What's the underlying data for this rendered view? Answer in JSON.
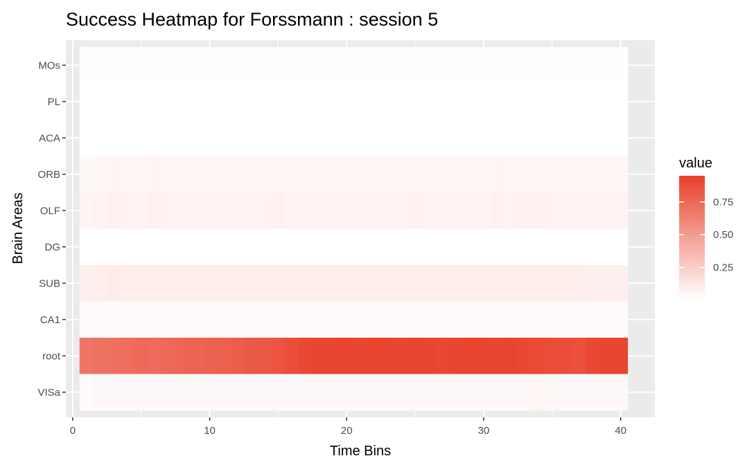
{
  "chart_data": {
    "type": "heatmap",
    "title": "Success Heatmap for Forssmann : session 5",
    "xlabel": "Time Bins",
    "ylabel": "Brain Areas",
    "xlim": [
      -0.5,
      42.5
    ],
    "x_ticks": [
      0,
      10,
      20,
      30,
      40
    ],
    "x": [
      1,
      2,
      3,
      4,
      5,
      6,
      7,
      8,
      9,
      10,
      11,
      12,
      13,
      14,
      15,
      16,
      17,
      18,
      19,
      20,
      21,
      22,
      23,
      24,
      25,
      26,
      27,
      28,
      29,
      30,
      31,
      32,
      33,
      34,
      35,
      36,
      37,
      38,
      39,
      40
    ],
    "categories": [
      "MOs",
      "PL",
      "ACA",
      "ORB",
      "OLF",
      "DG",
      "SUB",
      "CA1",
      "root",
      "VISa"
    ],
    "series": [
      {
        "name": "MOs",
        "values": [
          0.01,
          0.01,
          0.01,
          0.01,
          0.01,
          0.01,
          0.01,
          0.01,
          0.01,
          0.01,
          0.01,
          0.01,
          0.01,
          0.01,
          0.01,
          0.01,
          0.01,
          0.01,
          0.01,
          0.01,
          0.01,
          0.01,
          0.01,
          0.01,
          0.01,
          0.01,
          0.01,
          0.01,
          0.01,
          0.01,
          0.01,
          0.01,
          0.01,
          0.01,
          0.01,
          0.01,
          0.01,
          0.01,
          0.01,
          0.01
        ]
      },
      {
        "name": "PL",
        "values": [
          0.0,
          0.0,
          0.0,
          0.0,
          0.0,
          0.0,
          0.0,
          0.0,
          0.0,
          0.0,
          0.0,
          0.0,
          0.0,
          0.0,
          0.0,
          0.0,
          0.0,
          0.0,
          0.0,
          0.0,
          0.0,
          0.0,
          0.0,
          0.0,
          0.0,
          0.0,
          0.0,
          0.0,
          0.0,
          0.0,
          0.0,
          0.0,
          0.0,
          0.0,
          0.0,
          0.0,
          0.0,
          0.0,
          0.0,
          0.0
        ]
      },
      {
        "name": "ACA",
        "values": [
          0.0,
          0.0,
          0.0,
          0.0,
          0.0,
          0.0,
          0.0,
          0.0,
          0.0,
          0.0,
          0.0,
          0.0,
          0.0,
          0.0,
          0.0,
          0.0,
          0.0,
          0.0,
          0.0,
          0.0,
          0.0,
          0.0,
          0.0,
          0.0,
          0.0,
          0.0,
          0.0,
          0.0,
          0.0,
          0.0,
          0.0,
          0.0,
          0.0,
          0.0,
          0.0,
          0.0,
          0.0,
          0.0,
          0.0,
          0.0
        ]
      },
      {
        "name": "ORB",
        "values": [
          0.03,
          0.04,
          0.05,
          0.04,
          0.04,
          0.05,
          0.04,
          0.04,
          0.04,
          0.04,
          0.04,
          0.04,
          0.04,
          0.04,
          0.04,
          0.04,
          0.04,
          0.04,
          0.04,
          0.04,
          0.04,
          0.04,
          0.04,
          0.04,
          0.04,
          0.04,
          0.04,
          0.04,
          0.04,
          0.04,
          0.05,
          0.04,
          0.04,
          0.04,
          0.04,
          0.04,
          0.04,
          0.04,
          0.04,
          0.04
        ]
      },
      {
        "name": "OLF",
        "values": [
          0.05,
          0.06,
          0.07,
          0.06,
          0.06,
          0.07,
          0.06,
          0.06,
          0.06,
          0.06,
          0.06,
          0.06,
          0.06,
          0.06,
          0.07,
          0.06,
          0.06,
          0.06,
          0.06,
          0.06,
          0.06,
          0.06,
          0.06,
          0.06,
          0.07,
          0.06,
          0.06,
          0.06,
          0.06,
          0.06,
          0.07,
          0.06,
          0.07,
          0.07,
          0.06,
          0.06,
          0.06,
          0.06,
          0.06,
          0.06
        ]
      },
      {
        "name": "DG",
        "values": [
          0.0,
          0.0,
          0.0,
          0.0,
          0.0,
          0.0,
          0.0,
          0.0,
          0.0,
          0.0,
          0.0,
          0.0,
          0.0,
          0.0,
          0.0,
          0.0,
          0.0,
          0.0,
          0.0,
          0.0,
          0.0,
          0.0,
          0.0,
          0.0,
          0.0,
          0.0,
          0.0,
          0.0,
          0.0,
          0.0,
          0.0,
          0.0,
          0.0,
          0.0,
          0.0,
          0.0,
          0.0,
          0.0,
          0.0,
          0.0
        ]
      },
      {
        "name": "SUB",
        "values": [
          0.08,
          0.09,
          0.1,
          0.09,
          0.09,
          0.09,
          0.09,
          0.09,
          0.09,
          0.09,
          0.09,
          0.09,
          0.09,
          0.09,
          0.09,
          0.09,
          0.09,
          0.09,
          0.09,
          0.09,
          0.09,
          0.09,
          0.09,
          0.09,
          0.09,
          0.09,
          0.09,
          0.09,
          0.09,
          0.09,
          0.09,
          0.09,
          0.09,
          0.09,
          0.09,
          0.09,
          0.09,
          0.08,
          0.08,
          0.08
        ]
      },
      {
        "name": "CA1",
        "values": [
          0.02,
          0.02,
          0.02,
          0.02,
          0.02,
          0.02,
          0.02,
          0.02,
          0.02,
          0.02,
          0.02,
          0.02,
          0.02,
          0.02,
          0.02,
          0.02,
          0.02,
          0.02,
          0.02,
          0.02,
          0.02,
          0.02,
          0.02,
          0.02,
          0.02,
          0.02,
          0.02,
          0.02,
          0.02,
          0.02,
          0.02,
          0.02,
          0.02,
          0.02,
          0.02,
          0.02,
          0.02,
          0.02,
          0.02,
          0.02
        ]
      },
      {
        "name": "root",
        "values": [
          0.68,
          0.7,
          0.71,
          0.72,
          0.74,
          0.73,
          0.75,
          0.76,
          0.77,
          0.78,
          0.79,
          0.8,
          0.82,
          0.83,
          0.85,
          0.88,
          0.91,
          0.92,
          0.92,
          0.93,
          0.92,
          0.93,
          0.93,
          0.92,
          0.93,
          0.92,
          0.91,
          0.92,
          0.93,
          0.93,
          0.92,
          0.93,
          0.91,
          0.9,
          0.89,
          0.88,
          0.87,
          0.91,
          0.92,
          0.92
        ]
      },
      {
        "name": "VISa",
        "values": [
          0.02,
          0.03,
          0.03,
          0.03,
          0.03,
          0.03,
          0.03,
          0.03,
          0.03,
          0.03,
          0.03,
          0.03,
          0.03,
          0.03,
          0.03,
          0.03,
          0.03,
          0.03,
          0.03,
          0.03,
          0.03,
          0.03,
          0.03,
          0.03,
          0.03,
          0.03,
          0.03,
          0.03,
          0.03,
          0.03,
          0.03,
          0.03,
          0.03,
          0.04,
          0.03,
          0.03,
          0.03,
          0.03,
          0.03,
          0.03
        ]
      }
    ],
    "color_scale": {
      "low": "#ffffff",
      "high": "#e8402a",
      "min": 0,
      "max": 0.95
    },
    "legend": {
      "title": "value",
      "ticks": [
        0.25,
        0.5,
        0.75
      ],
      "tick_labels": [
        "0.25",
        "0.50",
        "0.75"
      ],
      "position": "right"
    },
    "grid": true,
    "panel_color": "#ebebeb",
    "grid_color": "#ffffff"
  }
}
